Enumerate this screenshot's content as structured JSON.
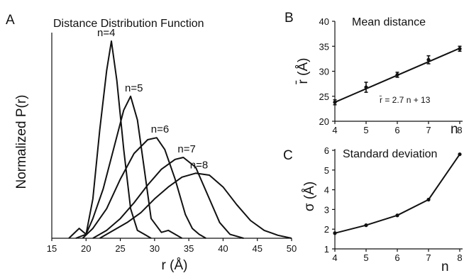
{
  "chart_data": [
    {
      "panel": "A",
      "type": "line",
      "title": "Distance Distribution Function",
      "xlabel": "r (Å)",
      "ylabel": "Normalized P(r)",
      "xlim": [
        15,
        50
      ],
      "xticks": [
        "15",
        "20",
        "25",
        "30",
        "35",
        "40",
        "45",
        "50"
      ],
      "series": [
        {
          "name": "n=4",
          "x": [
            17.5,
            19,
            20,
            21,
            22,
            23,
            23.7,
            24.5,
            25.5,
            26.5,
            27.5,
            28.5,
            29.5
          ],
          "y": [
            0,
            0.05,
            0.02,
            0.2,
            0.55,
            0.85,
            1.0,
            0.8,
            0.45,
            0.15,
            0.04,
            0.02,
            0
          ]
        },
        {
          "name": "n=5",
          "x": [
            18.5,
            20,
            21,
            22.5,
            24,
            25.5,
            26.5,
            27.5,
            28.5,
            29.5,
            31,
            32,
            33,
            34
          ],
          "y": [
            0,
            0.02,
            0.1,
            0.25,
            0.45,
            0.65,
            0.72,
            0.6,
            0.35,
            0.1,
            0.03,
            0.04,
            0.02,
            0
          ]
        },
        {
          "name": "n=6",
          "x": [
            19.5,
            21,
            23,
            25,
            27,
            29,
            30.3,
            31.5,
            33,
            34.5,
            35.5,
            36.5,
            37.5
          ],
          "y": [
            0,
            0.05,
            0.15,
            0.3,
            0.43,
            0.5,
            0.51,
            0.45,
            0.3,
            0.12,
            0.05,
            0.02,
            0
          ]
        },
        {
          "name": "n=7",
          "x": [
            21,
            23,
            25,
            27,
            29,
            31,
            33,
            34.2,
            36,
            38,
            39.5,
            41,
            43
          ],
          "y": [
            0,
            0.04,
            0.1,
            0.18,
            0.27,
            0.35,
            0.4,
            0.41,
            0.36,
            0.2,
            0.08,
            0.02,
            0
          ]
        },
        {
          "name": "n=8",
          "x": [
            22,
            24,
            26,
            28,
            30,
            32,
            34,
            36,
            38,
            40,
            42,
            44,
            46,
            48,
            50
          ],
          "y": [
            0,
            0.04,
            0.08,
            0.13,
            0.2,
            0.26,
            0.31,
            0.33,
            0.32,
            0.26,
            0.17,
            0.09,
            0.04,
            0.015,
            0
          ]
        }
      ]
    },
    {
      "panel": "B",
      "type": "line",
      "title": "Mean distance",
      "xlabel": "n",
      "ylabel": "r̄ (Å)",
      "xlim": [
        4,
        8
      ],
      "ylim": [
        20,
        40
      ],
      "xticks": [
        "4",
        "5",
        "6",
        "7",
        "8"
      ],
      "yticks": [
        "20",
        "25",
        "30",
        "35",
        "40"
      ],
      "annotation": "r̄ = 2.7 n + 13",
      "fit": {
        "slope": 2.7,
        "intercept": 13
      },
      "points": {
        "x": [
          4,
          5,
          6,
          7,
          8
        ],
        "y": [
          23.8,
          26.8,
          29.3,
          32.3,
          34.5
        ],
        "err": [
          0.5,
          1.0,
          0.5,
          0.8,
          0.5
        ]
      }
    },
    {
      "panel": "C",
      "type": "line",
      "title": "Standard deviation",
      "xlabel": "n",
      "ylabel": "σ (Å)",
      "xlim": [
        4,
        8
      ],
      "ylim": [
        1,
        6
      ],
      "xticks": [
        "4",
        "5",
        "6",
        "7",
        "8"
      ],
      "yticks": [
        "1",
        "2",
        "3",
        "4",
        "5",
        "6"
      ],
      "points": {
        "x": [
          4,
          5,
          6,
          7,
          8
        ],
        "y": [
          1.8,
          2.2,
          2.7,
          3.5,
          5.8
        ]
      }
    }
  ],
  "panels": {
    "a": "A",
    "b": "B",
    "c": "C"
  }
}
